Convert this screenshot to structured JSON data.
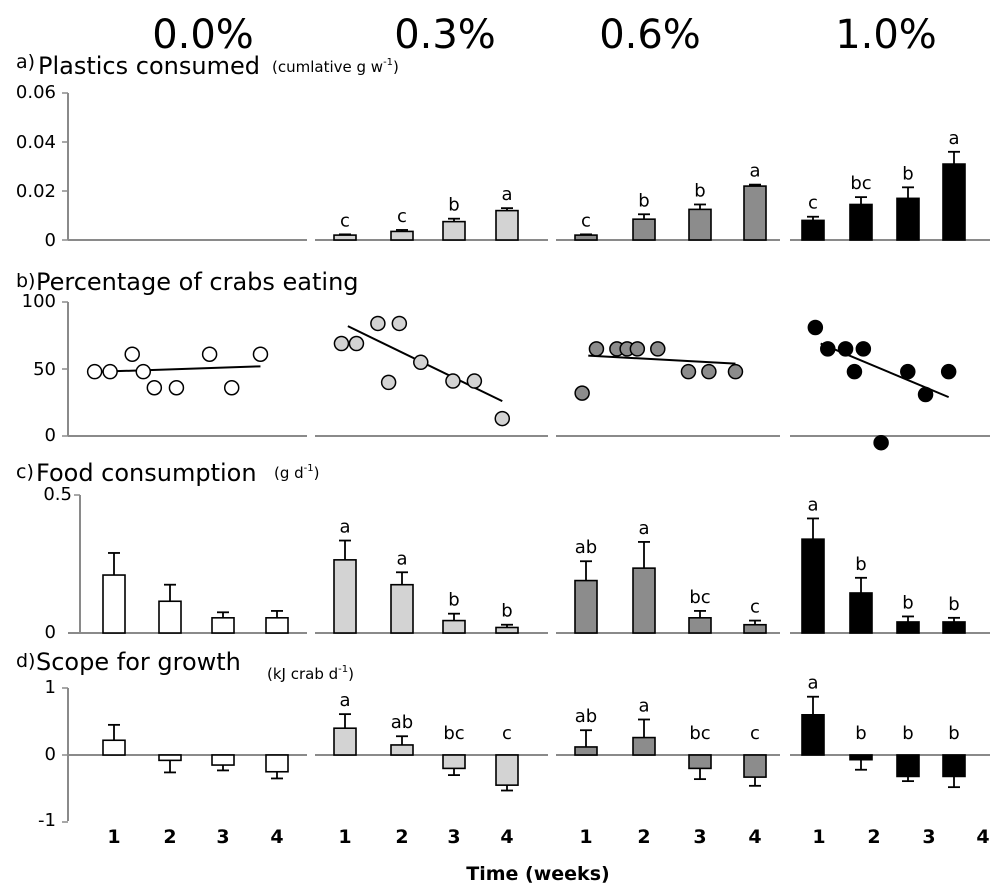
{
  "figure": {
    "x_label": "Time (weeks)",
    "x_ticks": [
      "1",
      "2",
      "3",
      "4"
    ]
  },
  "treatments": [
    {
      "label": "0.0%",
      "color": "#ffffff"
    },
    {
      "label": "0.3%",
      "color": "#d3d3d3"
    },
    {
      "label": "0.6%",
      "color": "#8c8c8c"
    },
    {
      "label": "1.0%",
      "color": "#000000"
    }
  ],
  "panels": [
    {
      "letter": "a)",
      "title": "Plastics consumed",
      "unit": "(cumlative g w",
      "unit_sup": "-1",
      "unit_close": ")",
      "y_ticks": [
        "0.06",
        "0.04",
        "0.02",
        "0"
      ]
    },
    {
      "letter": "b)",
      "title": "Percentage of crabs eating",
      "unit": "",
      "unit_sup": "",
      "unit_close": "",
      "y_ticks": [
        "100",
        "50",
        "0"
      ]
    },
    {
      "letter": "c)",
      "title": "Food consumption",
      "unit": "(g d",
      "unit_sup": "-1",
      "unit_close": ")",
      "y_ticks": [
        "0.5",
        "0"
      ]
    },
    {
      "letter": "d)",
      "title": "Scope for growth",
      "unit": "(kJ crab d",
      "unit_sup": "-1",
      "unit_close": ")",
      "y_ticks": [
        "1",
        "0",
        "-1"
      ]
    }
  ],
  "chart_data": [
    {
      "type": "bar",
      "title": "Plastics consumed",
      "ylabel": "(cumlative g w-1)",
      "xlabel": "Time (weeks)",
      "categories": [
        "1",
        "2",
        "3",
        "4"
      ],
      "ylim": [
        0,
        0.06
      ],
      "series": [
        {
          "name": "0.0%",
          "values": [
            null,
            null,
            null,
            null
          ],
          "errors": [
            null,
            null,
            null,
            null
          ],
          "labels": [
            "",
            "",
            "",
            ""
          ]
        },
        {
          "name": "0.3%",
          "values": [
            0.002,
            0.0035,
            0.0075,
            0.012
          ],
          "errors": [
            0.0003,
            0.0006,
            0.0012,
            0.001
          ],
          "labels": [
            "c",
            "c",
            "b",
            "a"
          ]
        },
        {
          "name": "0.6%",
          "values": [
            0.002,
            0.0085,
            0.0125,
            0.022
          ],
          "errors": [
            0.0003,
            0.002,
            0.002,
            0.0006
          ],
          "labels": [
            "c",
            "b",
            "b",
            "a"
          ]
        },
        {
          "name": "1.0%",
          "values": [
            0.008,
            0.0145,
            0.017,
            0.031
          ],
          "errors": [
            0.0015,
            0.003,
            0.0045,
            0.005
          ],
          "labels": [
            "c",
            "bc",
            "b",
            "a"
          ]
        }
      ]
    },
    {
      "type": "scatter",
      "title": "Percentage of crabs eating",
      "ylabel": "",
      "xlabel": "Time (weeks)",
      "ylim": [
        0,
        100
      ],
      "xlim": [
        0,
        9
      ],
      "series": [
        {
          "name": "0.0%",
          "x": [
            0.3,
            1,
            2,
            2.5,
            3,
            4,
            5.5,
            6.5,
            7.8
          ],
          "y": [
            48,
            48,
            61,
            48,
            36,
            36,
            61,
            36,
            61
          ],
          "trend": [
            48,
            52
          ]
        },
        {
          "name": "0.3%",
          "x": [
            0.3,
            1,
            2,
            2.5,
            3,
            4,
            5.5,
            6.5,
            7.8
          ],
          "y": [
            69,
            69,
            84,
            40,
            84,
            55,
            41,
            41,
            13
          ],
          "trend": [
            82,
            26
          ]
        },
        {
          "name": "0.6%",
          "x": [
            0.3,
            1,
            2,
            2.5,
            3,
            4,
            5.5,
            6.5,
            7.8
          ],
          "y": [
            32,
            65,
            65,
            65,
            65,
            65,
            48,
            48,
            48
          ],
          "trend": [
            60,
            54
          ]
        },
        {
          "name": "1.0%",
          "x": [
            0.3,
            1,
            2,
            2.5,
            3,
            4,
            5.5,
            6.5,
            7.8
          ],
          "y": [
            81,
            65,
            65,
            48,
            65,
            -5,
            48,
            31,
            48
          ],
          "trend": [
            69,
            29
          ]
        }
      ]
    },
    {
      "type": "bar",
      "title": "Food consumption",
      "ylabel": "(g d-1)",
      "xlabel": "Time (weeks)",
      "categories": [
        "1",
        "2",
        "3",
        "4"
      ],
      "ylim": [
        0,
        0.5
      ],
      "series": [
        {
          "name": "0.0%",
          "values": [
            0.21,
            0.115,
            0.055,
            0.055
          ],
          "errors": [
            0.08,
            0.06,
            0.02,
            0.025
          ],
          "labels": [
            "",
            "",
            "",
            ""
          ]
        },
        {
          "name": "0.3%",
          "values": [
            0.265,
            0.175,
            0.045,
            0.02
          ],
          "errors": [
            0.07,
            0.045,
            0.025,
            0.01
          ],
          "labels": [
            "a",
            "a",
            "b",
            "b"
          ]
        },
        {
          "name": "0.6%",
          "values": [
            0.19,
            0.235,
            0.055,
            0.03
          ],
          "errors": [
            0.07,
            0.095,
            0.025,
            0.015
          ],
          "labels": [
            "ab",
            "a",
            "bc",
            "c"
          ]
        },
        {
          "name": "1.0%",
          "values": [
            0.34,
            0.145,
            0.04,
            0.04
          ],
          "errors": [
            0.075,
            0.055,
            0.02,
            0.015
          ],
          "labels": [
            "a",
            "b",
            "b",
            "b"
          ]
        }
      ]
    },
    {
      "type": "bar",
      "title": "Scope for growth",
      "ylabel": "(kJ crab d-1)",
      "xlabel": "Time (weeks)",
      "categories": [
        "1",
        "2",
        "3",
        "4"
      ],
      "ylim": [
        -1,
        1
      ],
      "series": [
        {
          "name": "0.0%",
          "values": [
            0.22,
            -0.08,
            -0.15,
            -0.25
          ],
          "errors": [
            0.23,
            0.18,
            0.08,
            0.1
          ],
          "labels": [
            "",
            "",
            "",
            ""
          ]
        },
        {
          "name": "0.3%",
          "values": [
            0.4,
            0.15,
            -0.2,
            -0.45
          ],
          "errors": [
            0.21,
            0.13,
            0.1,
            0.08
          ],
          "labels": [
            "a",
            "ab",
            "bc",
            "c"
          ]
        },
        {
          "name": "0.6%",
          "values": [
            0.12,
            0.26,
            -0.2,
            -0.33
          ],
          "errors": [
            0.25,
            0.27,
            0.16,
            0.13
          ],
          "labels": [
            "ab",
            "a",
            "bc",
            "c"
          ]
        },
        {
          "name": "1.0%",
          "values": [
            0.6,
            -0.07,
            -0.32,
            -0.32
          ],
          "errors": [
            0.27,
            0.15,
            0.07,
            0.16
          ],
          "labels": [
            "a",
            "b",
            "b",
            "b"
          ]
        }
      ]
    }
  ]
}
